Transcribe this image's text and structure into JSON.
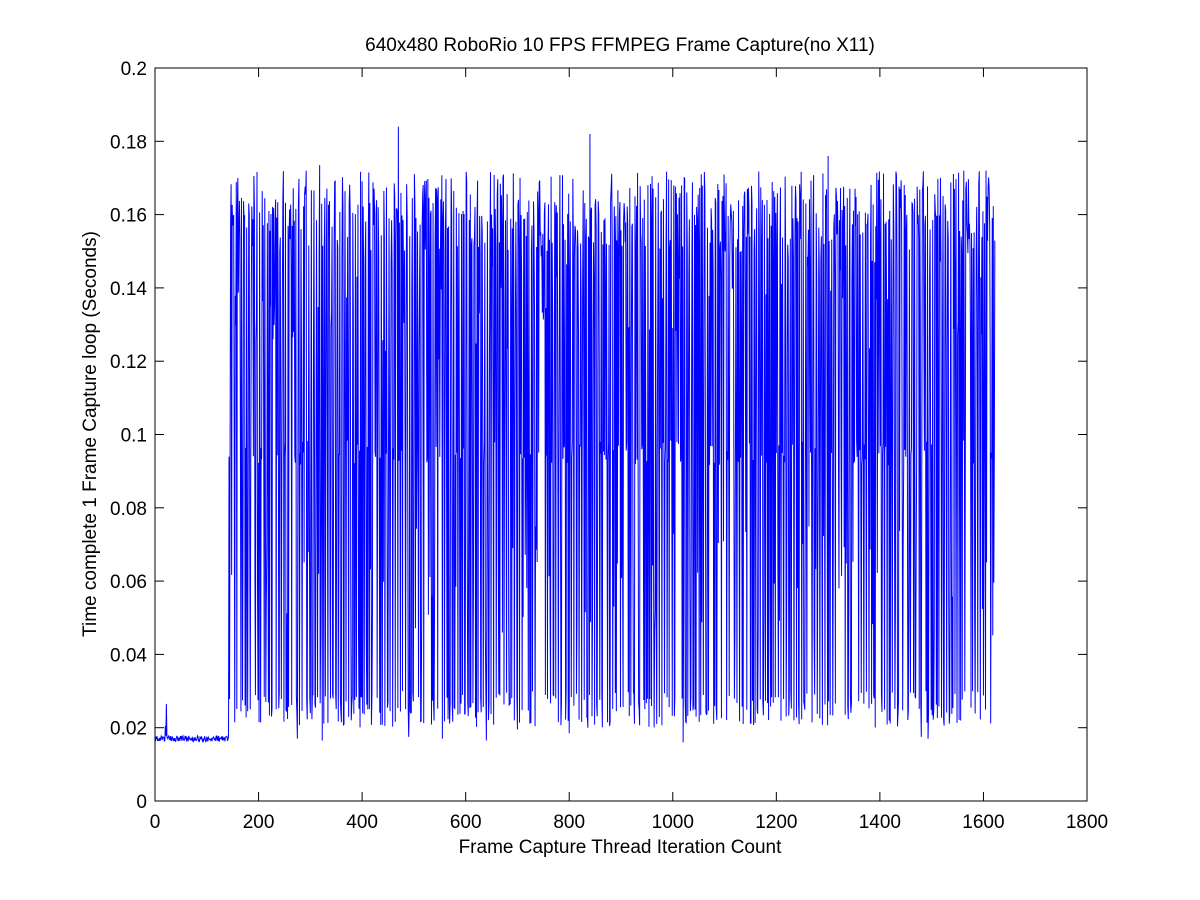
{
  "chart_data": {
    "type": "line",
    "title": "640x480 RoboRio 10 FPS FFMPEG Frame Capture(no X11)",
    "xlabel": "Frame Capture Thread Iteration Count",
    "ylabel": "Time complete 1 Frame Capture loop (Seconds)",
    "xlim": [
      0,
      1800
    ],
    "ylim": [
      0,
      0.2
    ],
    "xticks": [
      0,
      200,
      400,
      600,
      800,
      1000,
      1200,
      1400,
      1600,
      1800
    ],
    "yticks": [
      0,
      0.02,
      0.04,
      0.06,
      0.08,
      0.1,
      0.12,
      0.14,
      0.16,
      0.18,
      0.2
    ],
    "xtick_labels": [
      "0",
      "200",
      "400",
      "600",
      "800",
      "1000",
      "1200",
      "1400",
      "1600",
      "1800"
    ],
    "ytick_labels": [
      "0",
      "0.02",
      "0.04",
      "0.06",
      "0.08",
      "0.1",
      "0.12",
      "0.14",
      "0.16",
      "0.18",
      "0.2"
    ],
    "grid": false,
    "series_color": "#0000ff",
    "series": [
      {
        "x_start": 1,
        "x_end": 1622,
        "description_points": [
          {
            "x": 1,
            "y": 0.0175
          },
          {
            "x": 10,
            "y": 0.0172
          },
          {
            "x": 20,
            "y": 0.0205
          },
          {
            "x": 22,
            "y": 0.0265
          },
          {
            "x": 24,
            "y": 0.0175
          },
          {
            "x": 60,
            "y": 0.017
          },
          {
            "x": 100,
            "y": 0.0168
          },
          {
            "x": 140,
            "y": 0.0172
          },
          {
            "x": 145,
            "y": 0.092
          },
          {
            "x": 150,
            "y": 0.133
          },
          {
            "x": 155,
            "y": 0.028
          },
          {
            "x": 160,
            "y": 0.17
          },
          {
            "x": 165,
            "y": 0.045
          },
          {
            "x": 170,
            "y": 0.162
          },
          {
            "x": 174,
            "y": 0.094
          },
          {
            "x": 400,
            "y": 0.095
          },
          {
            "x": 470,
            "y": 0.184
          },
          {
            "x": 595,
            "y": 0.161
          },
          {
            "x": 650,
            "y": 0.16
          },
          {
            "x": 705,
            "y": 0.17
          },
          {
            "x": 840,
            "y": 0.182
          },
          {
            "x": 1020,
            "y": 0.016
          },
          {
            "x": 1300,
            "y": 0.176
          },
          {
            "x": 1480,
            "y": 0.0175
          },
          {
            "x": 1605,
            "y": 0.172
          },
          {
            "x": 1622,
            "y": 0.095
          }
        ],
        "approximate_generator": {
          "initial_segment": {
            "x_from": 1,
            "x_to": 142,
            "baseline": 0.017,
            "jitter": 0.0008,
            "spikes": [
              {
                "x": 20,
                "y": 0.0205
              },
              {
                "x": 22,
                "y": 0.0265
              }
            ]
          },
          "main_segment": {
            "x_from": 143,
            "x_to": 1622,
            "baseline": 0.095,
            "baseline_jitter": 0.0035,
            "upper_spike_range": [
              0.15,
              0.172
            ],
            "lower_spike_range": [
              0.02,
              0.03
            ],
            "notable_peaks": [
              {
                "x": 160,
                "y": 0.17
              },
              {
                "x": 318,
                "y": 0.1735
              },
              {
                "x": 470,
                "y": 0.184
              },
              {
                "x": 595,
                "y": 0.161
              },
              {
                "x": 650,
                "y": 0.16
              },
              {
                "x": 705,
                "y": 0.17
              },
              {
                "x": 840,
                "y": 0.182
              },
              {
                "x": 1300,
                "y": 0.176
              },
              {
                "x": 1605,
                "y": 0.172
              }
            ],
            "notable_lows": [
              {
                "x": 275,
                "y": 0.017
              },
              {
                "x": 323,
                "y": 0.0165
              },
              {
                "x": 490,
                "y": 0.0175
              },
              {
                "x": 555,
                "y": 0.017
              },
              {
                "x": 640,
                "y": 0.0165
              },
              {
                "x": 700,
                "y": 0.0195
              },
              {
                "x": 800,
                "y": 0.0185
              },
              {
                "x": 1020,
                "y": 0.016
              },
              {
                "x": 1480,
                "y": 0.0175
              },
              {
                "x": 1493,
                "y": 0.017
              }
            ]
          }
        }
      }
    ]
  }
}
